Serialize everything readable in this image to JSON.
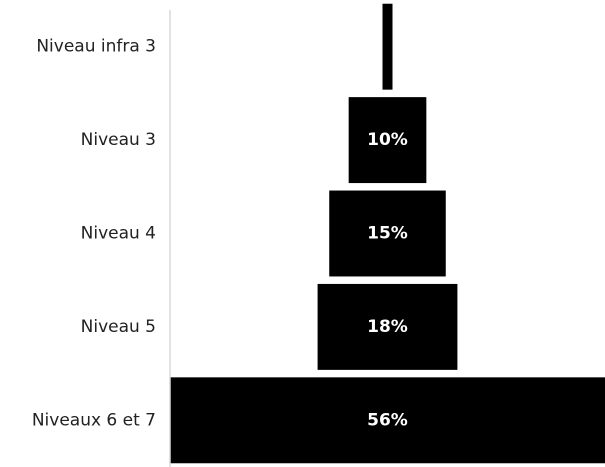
{
  "chart_data": {
    "type": "bar",
    "orientation": "horizontal-centered",
    "categories": [
      "Niveau infra 3",
      "Niveau 3",
      "Niveau 4",
      "Niveau 5",
      "Niveaux 6 et 7"
    ],
    "values": [
      1,
      10,
      15,
      18,
      56
    ],
    "value_labels": [
      "",
      "10%",
      "15%",
      "18%",
      "56%"
    ],
    "title": "",
    "xlabel": "",
    "ylabel": "",
    "grid": false,
    "legend": "none",
    "colors": {
      "bar": "#000000",
      "value_label": "#ffffff",
      "category_label": "#222222",
      "axis": "#d9d9d9",
      "background": "#ffffff"
    }
  }
}
